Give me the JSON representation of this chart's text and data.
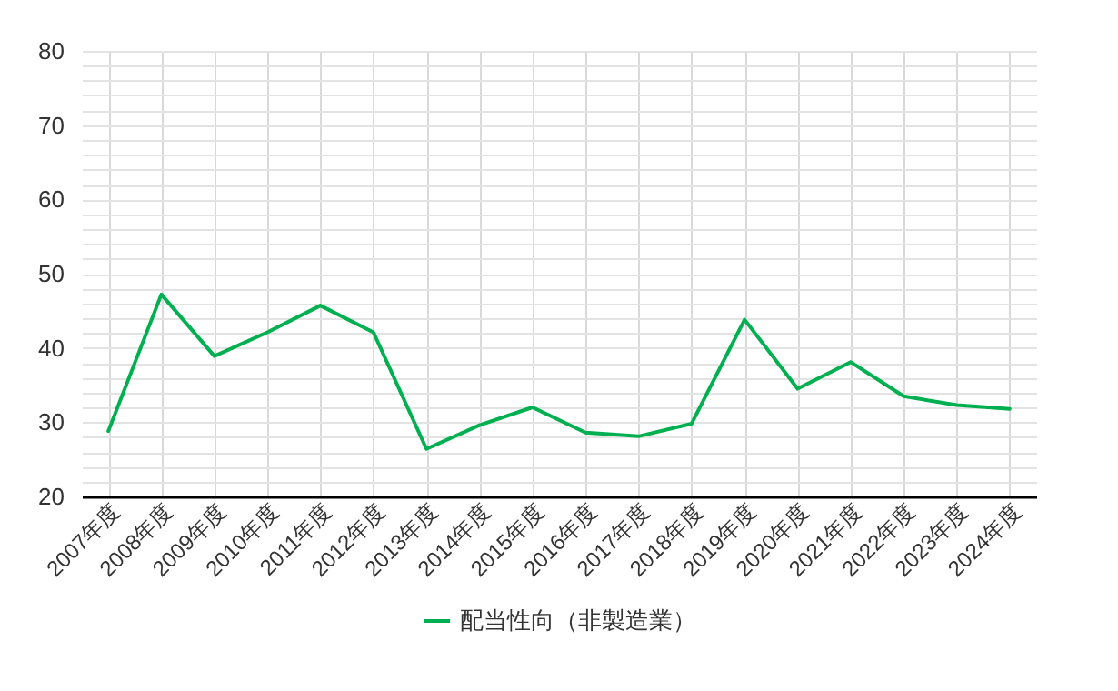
{
  "chart_data": {
    "type": "line",
    "categories": [
      "2007年度",
      "2008年度",
      "2009年度",
      "2010年度",
      "2011年度",
      "2012年度",
      "2013年度",
      "2014年度",
      "2015年度",
      "2016年度",
      "2017年度",
      "2018年度",
      "2019年度",
      "2020年度",
      "2021年度",
      "2022年度",
      "2023年度",
      "2024年度"
    ],
    "series": [
      {
        "name": "配当性向（非製造業）",
        "color": "#00b050",
        "values": [
          28.8,
          47.2,
          38.9,
          42.1,
          45.7,
          42.1,
          26.4,
          29.6,
          32.0,
          28.6,
          28.1,
          29.8,
          43.8,
          34.5,
          38.1,
          33.5,
          32.3,
          31.8
        ]
      }
    ],
    "ylim": [
      20,
      80
    ],
    "yticks": [
      20,
      {
        "value": 22,
        "label": null
      },
      {
        "value": 24,
        "label": null
      },
      {
        "value": 26,
        "label": null
      },
      {
        "value": 28,
        "label": null
      },
      30,
      {
        "value": 32,
        "label": null
      },
      {
        "value": 34,
        "label": null
      },
      {
        "value": 36,
        "label": null
      },
      {
        "value": 38,
        "label": null
      },
      40,
      {
        "value": 42,
        "label": null
      },
      {
        "value": 44,
        "label": null
      },
      {
        "value": 46,
        "label": null
      },
      {
        "value": 48,
        "label": null
      },
      50,
      {
        "value": 52,
        "label": null
      },
      {
        "value": 54,
        "label": null
      },
      {
        "value": 56,
        "label": null
      },
      {
        "value": 58,
        "label": null
      },
      60,
      {
        "value": 62,
        "label": null
      },
      {
        "value": 64,
        "label": null
      },
      {
        "value": 66,
        "label": null
      },
      {
        "value": 68,
        "label": null
      },
      70,
      {
        "value": 72,
        "label": null
      },
      {
        "value": 74,
        "label": null
      },
      {
        "value": 76,
        "label": null
      },
      {
        "value": 78,
        "label": null
      },
      80
    ],
    "grid": true,
    "legend": "bottom",
    "marker": "none",
    "line_style": "solid"
  }
}
